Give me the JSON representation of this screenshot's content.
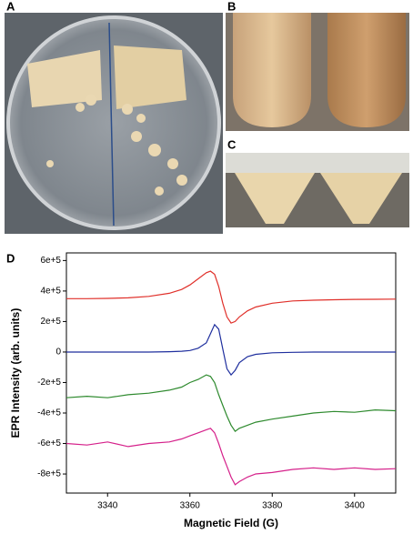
{
  "panel_labels": [
    "A",
    "B",
    "C",
    "D"
  ],
  "chart_data": {
    "type": "line",
    "y_label": "EPR Intensity (arb. units)",
    "x_label": "Magnetic Field (G)",
    "x": [
      3330,
      3335,
      3340,
      3345,
      3350,
      3355,
      3358,
      3360,
      3362,
      3364,
      3365,
      3366,
      3367,
      3368,
      3369,
      3370,
      3371,
      3372,
      3374,
      3376,
      3380,
      3385,
      3390,
      3395,
      3400,
      3405,
      3410
    ],
    "xlim": [
      3330,
      3410
    ],
    "xticks": [
      3340,
      3360,
      3380,
      3400
    ],
    "ylim": [
      -925000,
      650000
    ],
    "yticks": [
      {
        "value": 600000,
        "label": "6e+5"
      },
      {
        "value": 400000,
        "label": "4e+5"
      },
      {
        "value": 200000,
        "label": "2e+5"
      },
      0,
      {
        "value": -200000,
        "label": "-2e+5"
      },
      {
        "value": -400000,
        "label": "-4e+5"
      },
      {
        "value": -600000,
        "label": "-6e+5"
      },
      {
        "value": -800000,
        "label": "-8e+5"
      }
    ],
    "series": [
      {
        "color": "#e0302a",
        "values": [
          350000,
          350000,
          352000,
          355000,
          365000,
          385000,
          410000,
          440000,
          480000,
          520000,
          530000,
          510000,
          430000,
          320000,
          230000,
          190000,
          200000,
          230000,
          270000,
          295000,
          320000,
          335000,
          340000,
          343000,
          345000,
          346000,
          347000
        ]
      },
      {
        "color": "#1f2f9e",
        "values": [
          0,
          0,
          0,
          0,
          0,
          2000,
          5000,
          10000,
          25000,
          60000,
          120000,
          180000,
          150000,
          20000,
          -110000,
          -150000,
          -120000,
          -70000,
          -30000,
          -15000,
          -5000,
          -2000,
          0,
          0,
          0,
          0,
          0
        ]
      },
      {
        "color": "#2e8a2e",
        "values": [
          -300000,
          -290000,
          -300000,
          -280000,
          -270000,
          -250000,
          -230000,
          -200000,
          -180000,
          -150000,
          -160000,
          -200000,
          -280000,
          -350000,
          -420000,
          -480000,
          -520000,
          -500000,
          -480000,
          -460000,
          -440000,
          -420000,
          -400000,
          -390000,
          -395000,
          -380000,
          -385000
        ]
      },
      {
        "color": "#d5208a",
        "values": [
          -600000,
          -610000,
          -590000,
          -620000,
          -600000,
          -590000,
          -570000,
          -550000,
          -530000,
          -510000,
          -500000,
          -530000,
          -600000,
          -680000,
          -750000,
          -820000,
          -870000,
          -850000,
          -820000,
          -800000,
          -790000,
          -770000,
          -760000,
          -770000,
          -760000,
          -770000,
          -765000
        ]
      }
    ]
  }
}
